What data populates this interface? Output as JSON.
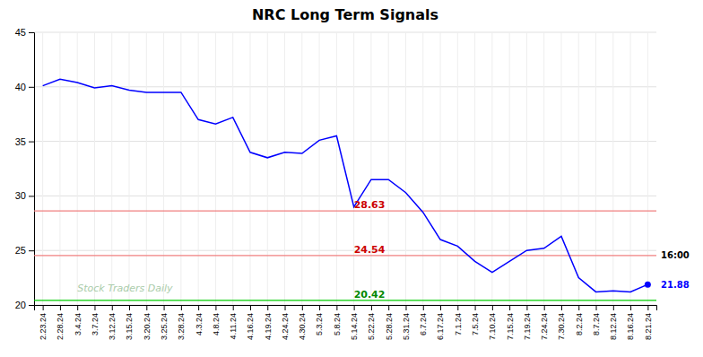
{
  "chart_data": {
    "type": "line",
    "title": "NRC Long Term Signals",
    "color": "blue",
    "grid": true,
    "end_dot_color": "blue",
    "categories": [
      "2.23.24",
      "2.28.24",
      "3.4.24",
      "3.7.24",
      "3.12.24",
      "3.15.24",
      "3.20.24",
      "3.25.24",
      "3.28.24",
      "4.3.24",
      "4.8.24",
      "4.11.24",
      "4.16.24",
      "4.19.24",
      "4.24.24",
      "4.30.24",
      "5.3.24",
      "5.8.24",
      "5.14.24",
      "5.22.24",
      "5.28.24",
      "5.31.24",
      "6.7.24",
      "6.17.24",
      "7.1.24",
      "7.5.24",
      "7.10.24",
      "7.15.24",
      "7.19.24",
      "7.24.24",
      "7.30.24",
      "8.2.24",
      "8.7.24",
      "8.12.24",
      "8.16.24",
      "8.21.24"
    ],
    "values": [
      40.1,
      40.7,
      40.4,
      39.9,
      40.1,
      39.7,
      39.5,
      39.5,
      39.5,
      37.0,
      36.6,
      37.2,
      34.0,
      33.5,
      34.0,
      33.9,
      35.1,
      35.5,
      29.0,
      31.5,
      31.5,
      30.3,
      28.5,
      26.0,
      25.4,
      24.0,
      23.0,
      24.0,
      25.0,
      25.2,
      26.3,
      22.5,
      21.2,
      21.3,
      21.2,
      21.88
    ],
    "ylim": [
      20,
      45
    ],
    "yticks": [
      20,
      25,
      30,
      35,
      40,
      45
    ],
    "hlines": [
      {
        "value": 28.63,
        "color": "#f08080",
        "label": "28.63",
        "label_color": "#cc0000",
        "label_x": "5.14.24"
      },
      {
        "value": 24.54,
        "color": "#f08080",
        "label": "24.54",
        "label_color": "#cc0000",
        "label_x": "5.14.24"
      },
      {
        "value": 20.42,
        "color": "#00cc00",
        "label": "20.42",
        "label_color": "#008800",
        "label_x": "5.14.24"
      }
    ],
    "watermark": {
      "text": "Stock Traders Daily",
      "x": "3.4.24",
      "y": 21.2,
      "color": "#aaccaa"
    },
    "end_labels": [
      {
        "text": "16:00",
        "y": 24.54,
        "color": "black"
      },
      {
        "text": "21.88",
        "y": 21.88,
        "color": "blue"
      }
    ]
  }
}
